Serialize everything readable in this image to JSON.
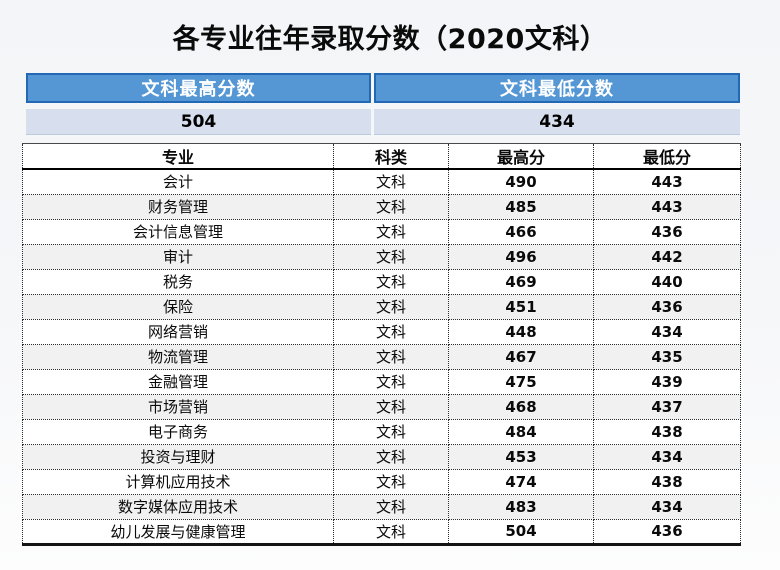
{
  "page": {
    "title": "各专业往年录取分数（2020文科）"
  },
  "summary": {
    "max_label": "文科最高分数",
    "min_label": "文科最低分数",
    "max_value": "504",
    "min_value": "434"
  },
  "table": {
    "headers": [
      "专业",
      "科类",
      "最高分",
      "最低分"
    ],
    "rows": [
      [
        "会计",
        "文科",
        "490",
        "443"
      ],
      [
        "财务管理",
        "文科",
        "485",
        "443"
      ],
      [
        "会计信息管理",
        "文科",
        "466",
        "436"
      ],
      [
        "审计",
        "文科",
        "496",
        "442"
      ],
      [
        "税务",
        "文科",
        "469",
        "440"
      ],
      [
        "保险",
        "文科",
        "451",
        "436"
      ],
      [
        "网络营销",
        "文科",
        "448",
        "434"
      ],
      [
        "物流管理",
        "文科",
        "467",
        "435"
      ],
      [
        "金融管理",
        "文科",
        "475",
        "439"
      ],
      [
        "市场营销",
        "文科",
        "468",
        "437"
      ],
      [
        "电子商务",
        "文科",
        "484",
        "438"
      ],
      [
        "投资与理财",
        "文科",
        "453",
        "434"
      ],
      [
        "计算机应用技术",
        "文科",
        "474",
        "438"
      ],
      [
        "数字媒体应用技术",
        "文科",
        "483",
        "434"
      ],
      [
        "幼儿发展与健康管理",
        "文科",
        "504",
        "436"
      ]
    ]
  },
  "colors": {
    "header_blue": "#5597d4",
    "header_blue_border": "#2268b4",
    "value_bg": "#d7dfee",
    "row_alt": "#f1f1f1"
  }
}
